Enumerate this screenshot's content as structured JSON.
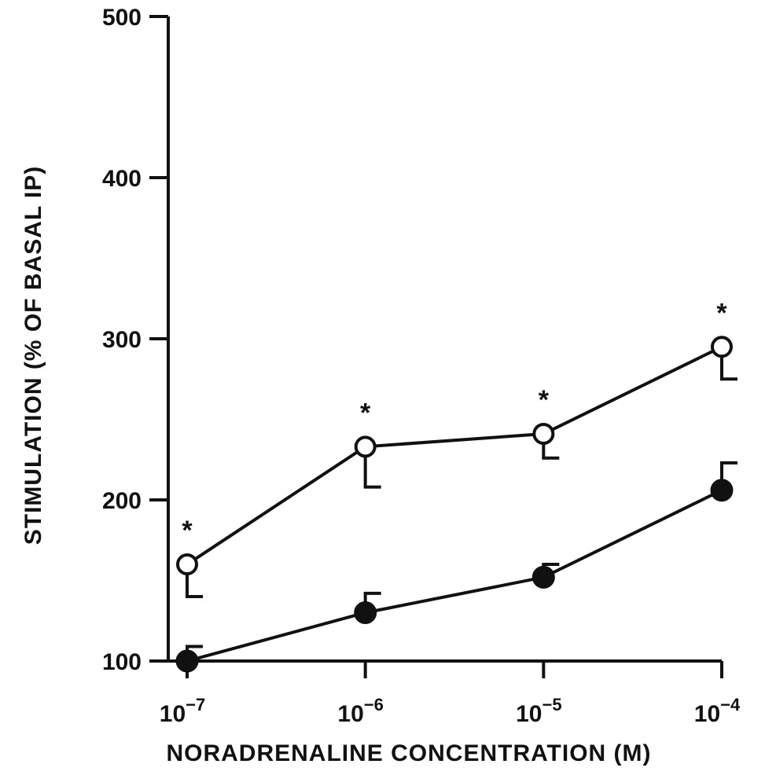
{
  "chart_data": {
    "type": "line",
    "title": "",
    "xlabel": "NORADRENALINE CONCENTRATION (M)",
    "ylabel": "STIMULATION (% OF BASAL IP)",
    "x_scale": "log",
    "x": [
      1e-07,
      1e-06,
      1e-05,
      0.0001
    ],
    "x_tick_labels": [
      {
        "base": "10",
        "exp": "−7"
      },
      {
        "base": "10",
        "exp": "−6"
      },
      {
        "base": "10",
        "exp": "−5"
      },
      {
        "base": "10",
        "exp": "−4"
      }
    ],
    "ylim": [
      100,
      500
    ],
    "y_ticks": [
      100,
      200,
      300,
      400,
      500
    ],
    "y_tick_labels": [
      "100",
      "200",
      "300",
      "400",
      "500"
    ],
    "grid": false,
    "series": [
      {
        "marker": "open-circle",
        "values": [
          160,
          233,
          241,
          295
        ],
        "error_lower": [
          140,
          208,
          226,
          275
        ],
        "significance": [
          "*",
          "*",
          "*",
          "*"
        ]
      },
      {
        "marker": "filled-circle",
        "values": [
          100,
          130,
          152,
          206
        ],
        "error_upper": [
          109,
          142,
          160,
          223
        ],
        "significance": [
          "",
          "",
          "",
          ""
        ]
      }
    ],
    "colors": {
      "ink": "#111111",
      "background": "#ffffff"
    }
  }
}
